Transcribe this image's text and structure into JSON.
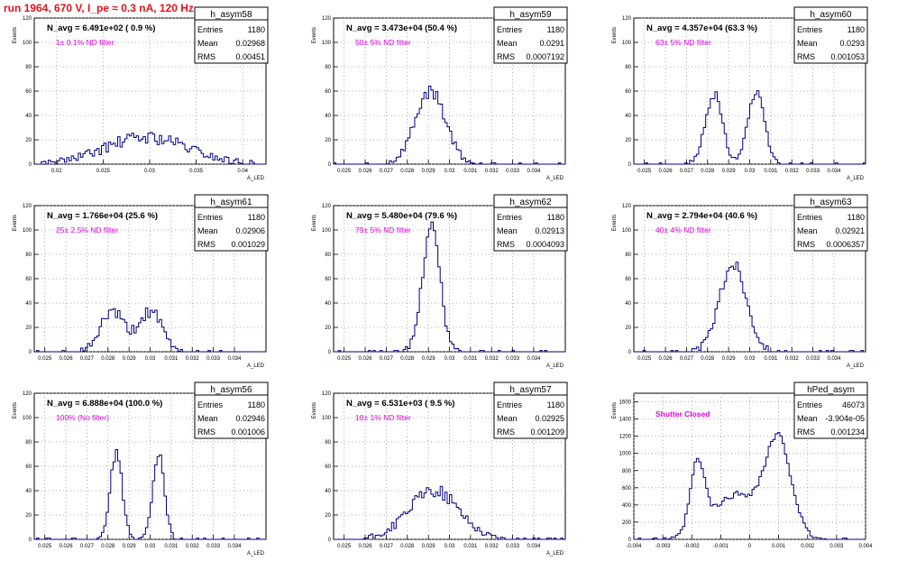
{
  "page_title": "run 1964,   670 V, I_pe ≈ 0.3 nA, 120 Hz",
  "chart_data": [
    {
      "type": "histogram",
      "name": "h_asym58",
      "navg": "N_avg = 6.491e+02 ( 0.9 %)",
      "filter_label": "1± 0.1% ND filter",
      "stats": [
        [
          "Entries",
          "1180"
        ],
        [
          "Mean",
          "0.02968"
        ],
        [
          "RMS",
          "0.00451"
        ]
      ],
      "ylabel": "Events",
      "xlabel": "A_LED",
      "xlim": [
        0.0176,
        0.0425
      ],
      "ylim": [
        0,
        120
      ],
      "xticks": [
        0.02,
        0.025,
        0.03,
        0.035,
        0.04
      ],
      "xtick_labels": [
        "0.02",
        "0.025",
        "0.03",
        "0.035",
        "0.04"
      ],
      "yticks": [
        0,
        20,
        40,
        60,
        80,
        100,
        120
      ],
      "peaks": [
        {
          "mu": 0.02968,
          "sigma": 0.0045,
          "amp": 22
        }
      ],
      "noise": 5,
      "seed": 58
    },
    {
      "type": "histogram",
      "name": "h_asym59",
      "navg": "N_avg = 3.473e+04 (50.4 %)",
      "filter_label": "50± 5% ND filter",
      "stats": [
        [
          "Entries",
          "1180"
        ],
        [
          "Mean",
          "0.0291"
        ],
        [
          "RMS",
          "0.0007192"
        ]
      ],
      "ylabel": "Events",
      "xlabel": "A_LED",
      "xlim": [
        0.0245,
        0.0355
      ],
      "ylim": [
        0,
        120
      ],
      "xticks": [
        0.025,
        0.026,
        0.027,
        0.028,
        0.029,
        0.03,
        0.031,
        0.032,
        0.033,
        0.034
      ],
      "xtick_labels": [
        "0.025",
        "0.026",
        "0.027",
        "0.028",
        "0.029",
        "0.03",
        "0.031",
        "0.032",
        "0.033",
        "0.034"
      ],
      "yticks": [
        0,
        20,
        40,
        60,
        80,
        100,
        120
      ],
      "peaks": [
        {
          "mu": 0.0291,
          "sigma": 0.00072,
          "amp": 60
        }
      ],
      "noise": 5,
      "seed": 59
    },
    {
      "type": "histogram",
      "name": "h_asym60",
      "navg": "N_avg = 4.357e+04 (63.3 %)",
      "filter_label": "63± 5% ND filter",
      "stats": [
        [
          "Entries",
          "1180"
        ],
        [
          "Mean",
          "0.0293"
        ],
        [
          "RMS",
          "0.001053"
        ]
      ],
      "ylabel": "Events",
      "xlabel": "A_LED",
      "xlim": [
        0.0245,
        0.0355
      ],
      "ylim": [
        0,
        120
      ],
      "xticks": [
        0.025,
        0.026,
        0.027,
        0.028,
        0.029,
        0.03,
        0.031,
        0.032,
        0.033,
        0.034
      ],
      "xtick_labels": [
        "0.025",
        "0.026",
        "0.027",
        "0.028",
        "0.029",
        "0.03",
        "0.031",
        "0.032",
        "0.033",
        "0.034"
      ],
      "yticks": [
        0,
        20,
        40,
        60,
        80,
        100,
        120
      ],
      "peaks": [
        {
          "mu": 0.0283,
          "sigma": 0.0004,
          "amp": 58
        },
        {
          "mu": 0.0303,
          "sigma": 0.0004,
          "amp": 58
        }
      ],
      "noise": 4,
      "seed": 60
    },
    {
      "type": "histogram",
      "name": "h_asym61",
      "navg": "N_avg = 1.766e+04 (25.6 %)",
      "filter_label": "25± 2.5% ND filter",
      "stats": [
        [
          "Entries",
          "1180"
        ],
        [
          "Mean",
          "0.02906"
        ],
        [
          "RMS",
          "0.001029"
        ]
      ],
      "ylabel": "Events",
      "xlabel": "A_LED",
      "xlim": [
        0.0245,
        0.0355
      ],
      "ylim": [
        0,
        120
      ],
      "xticks": [
        0.025,
        0.026,
        0.027,
        0.028,
        0.029,
        0.03,
        0.031,
        0.032,
        0.033,
        0.034
      ],
      "xtick_labels": [
        "0.025",
        "0.026",
        "0.027",
        "0.028",
        "0.029",
        "0.03",
        "0.031",
        "0.032",
        "0.033",
        "0.034"
      ],
      "yticks": [
        0,
        20,
        40,
        60,
        80,
        100,
        120
      ],
      "peaks": [
        {
          "mu": 0.0282,
          "sigma": 0.00055,
          "amp": 33
        },
        {
          "mu": 0.03,
          "sigma": 0.00055,
          "amp": 33
        }
      ],
      "noise": 5,
      "seed": 61
    },
    {
      "type": "histogram",
      "name": "h_asym62",
      "navg": "N_avg = 5.480e+04 (79.6 %)",
      "filter_label": "79± 5% ND filter",
      "stats": [
        [
          "Entries",
          "1180"
        ],
        [
          "Mean",
          "0.02913"
        ],
        [
          "RMS",
          "0.0004093"
        ]
      ],
      "ylabel": "Events",
      "xlabel": "A_LED",
      "xlim": [
        0.0245,
        0.0355
      ],
      "ylim": [
        0,
        120
      ],
      "xticks": [
        0.025,
        0.026,
        0.027,
        0.028,
        0.029,
        0.03,
        0.031,
        0.032,
        0.033,
        0.034
      ],
      "xtick_labels": [
        "0.025",
        "0.026",
        "0.027",
        "0.028",
        "0.029",
        "0.03",
        "0.031",
        "0.032",
        "0.033",
        "0.034"
      ],
      "yticks": [
        0,
        20,
        40,
        60,
        80,
        100,
        120
      ],
      "peaks": [
        {
          "mu": 0.02913,
          "sigma": 0.00041,
          "amp": 105
        }
      ],
      "noise": 6,
      "seed": 62
    },
    {
      "type": "histogram",
      "name": "h_asym63",
      "navg": "N_avg = 2.794e+04 (40.6 %)",
      "filter_label": "40± 4% ND filter",
      "stats": [
        [
          "Entries",
          "1180"
        ],
        [
          "Mean",
          "0.02921"
        ],
        [
          "RMS",
          "0.0006357"
        ]
      ],
      "ylabel": "Events",
      "xlabel": "A_LED",
      "xlim": [
        0.0245,
        0.0355
      ],
      "ylim": [
        0,
        120
      ],
      "xticks": [
        0.025,
        0.026,
        0.027,
        0.028,
        0.029,
        0.03,
        0.031,
        0.032,
        0.033,
        0.034
      ],
      "xtick_labels": [
        "0.025",
        "0.026",
        "0.027",
        "0.028",
        "0.029",
        "0.03",
        "0.031",
        "0.032",
        "0.033",
        "0.034"
      ],
      "yticks": [
        0,
        20,
        40,
        60,
        80,
        100,
        120
      ],
      "peaks": [
        {
          "mu": 0.02921,
          "sigma": 0.00064,
          "amp": 72
        }
      ],
      "noise": 5,
      "seed": 63
    },
    {
      "type": "histogram",
      "name": "h_asym56",
      "navg": "N_avg = 6.888e+04 (100.0 %)",
      "filter_label": "100% (No filter)",
      "stats": [
        [
          "Entries",
          "1180"
        ],
        [
          "Mean",
          "0.02946"
        ],
        [
          "RMS",
          "0.001006"
        ]
      ],
      "ylabel": "Events",
      "xlabel": "A_LED",
      "xlim": [
        0.0245,
        0.0355
      ],
      "ylim": [
        0,
        120
      ],
      "xticks": [
        0.025,
        0.026,
        0.027,
        0.028,
        0.029,
        0.03,
        0.031,
        0.032,
        0.033,
        0.034
      ],
      "xtick_labels": [
        "0.025",
        "0.026",
        "0.027",
        "0.028",
        "0.029",
        "0.03",
        "0.031",
        "0.032",
        "0.033",
        "0.034"
      ],
      "yticks": [
        0,
        20,
        40,
        60,
        80,
        100,
        120
      ],
      "peaks": [
        {
          "mu": 0.0284,
          "sigma": 0.00028,
          "amp": 72
        },
        {
          "mu": 0.0304,
          "sigma": 0.00028,
          "amp": 72
        }
      ],
      "noise": 5,
      "seed": 56
    },
    {
      "type": "histogram",
      "name": "h_asym57",
      "navg": "N_avg = 6.531e+03 ( 9.5 %)",
      "filter_label": "10± 1% ND filter",
      "stats": [
        [
          "Entries",
          "1180"
        ],
        [
          "Mean",
          "0.02925"
        ],
        [
          "RMS",
          "0.001209"
        ]
      ],
      "ylabel": "Events",
      "xlabel": "A_LED",
      "xlim": [
        0.0245,
        0.0355
      ],
      "ylim": [
        0,
        120
      ],
      "xticks": [
        0.025,
        0.026,
        0.027,
        0.028,
        0.029,
        0.03,
        0.031,
        0.032,
        0.033,
        0.034
      ],
      "xtick_labels": [
        "0.025",
        "0.026",
        "0.027",
        "0.028",
        "0.029",
        "0.03",
        "0.031",
        "0.032",
        "0.033",
        "0.034"
      ],
      "yticks": [
        0,
        20,
        40,
        60,
        80,
        100,
        120
      ],
      "peaks": [
        {
          "mu": 0.02925,
          "sigma": 0.0012,
          "amp": 40
        }
      ],
      "noise": 5,
      "seed": 57
    },
    {
      "type": "histogram",
      "name": "hPed_asym",
      "navg": "",
      "filter_label": "Shutter Closed",
      "stats": [
        [
          "Entries",
          "46073"
        ],
        [
          "Mean",
          "-3.904e-05"
        ],
        [
          "RMS",
          "0.001234"
        ]
      ],
      "ylabel": "Events",
      "xlabel": "",
      "xlim": [
        -0.004,
        0.004
      ],
      "ylim": [
        0,
        1700
      ],
      "xticks": [
        -0.004,
        -0.003,
        -0.002,
        -0.001,
        0,
        0.001,
        0.002,
        0.003,
        0.004
      ],
      "xtick_labels": [
        "-0.004",
        "-0.003",
        "-0.002",
        "-0.001",
        "0",
        "0.001",
        "0.002",
        "0.003",
        "0.004"
      ],
      "yticks": [
        0,
        200,
        400,
        600,
        800,
        1000,
        1200,
        1400,
        1600
      ],
      "peaks": [
        {
          "mu": -0.0018,
          "sigma": 0.00025,
          "amp": 800
        },
        {
          "mu": 0.001,
          "sigma": 0.00045,
          "amp": 1100
        },
        {
          "mu": -0.00045,
          "sigma": 0.0008,
          "amp": 520
        }
      ],
      "noise": 40,
      "seed": 99
    }
  ]
}
